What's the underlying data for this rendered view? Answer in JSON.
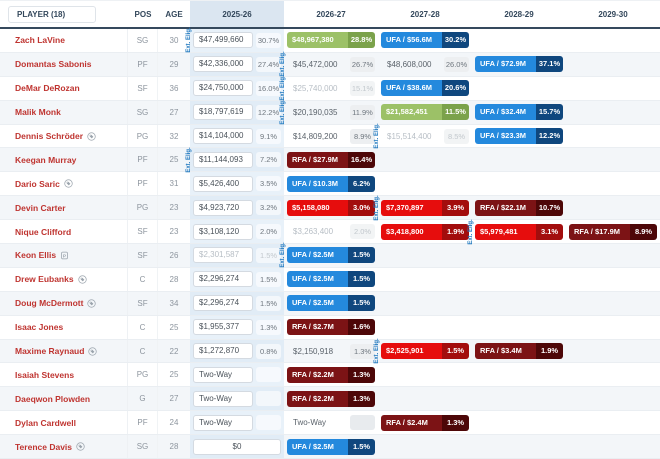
{
  "ext_label": "Ext. Elig.",
  "colors": {
    "player_link": "#bf3430",
    "ext_label": "#1f78bf",
    "header_text": "#33475b",
    "accent_green": "#9cc167",
    "accent_green_dark": "#7ba24b",
    "accent_blue": "#2489dd",
    "accent_blue_dark": "#0f477e",
    "accent_red": "#e60d0d",
    "accent_red_dark": "#a30d0d",
    "accent_maroon": "#7c1315",
    "accent_maroon_dark": "#4d0708",
    "current_col_bg": "#e8eff7"
  },
  "header": {
    "player_label": "PLAYER (18)",
    "pos_label": "POS",
    "age_label": "AGE",
    "years": [
      "2025-26",
      "2026-27",
      "2027-28",
      "2028-29",
      "2029-30"
    ],
    "current_year": "2025-26"
  },
  "rows": [
    {
      "name": "Zach LaVine",
      "icon": null,
      "pos": "SG",
      "age": "30",
      "cells": [
        {
          "style": "box",
          "value": "$47,499,660",
          "pct": "30.7%",
          "ext": true
        },
        {
          "style": "green",
          "value": "$48,967,380",
          "pct": "28.8%"
        },
        {
          "style": "blue",
          "value": "UFA / $56.6M",
          "pct": "30.2%"
        },
        null,
        null
      ]
    },
    {
      "name": "Domantas Sabonis",
      "icon": null,
      "pos": "PF",
      "age": "29",
      "cells": [
        {
          "style": "box",
          "value": "$42,336,000",
          "pct": "27.4%"
        },
        {
          "style": "plain",
          "value": "$45,472,000",
          "pct": "26.7%",
          "ext": true
        },
        {
          "style": "plain",
          "value": "$48,608,000",
          "pct": "26.0%"
        },
        {
          "style": "blue",
          "value": "UFA / $72.9M",
          "pct": "37.1%"
        },
        null
      ]
    },
    {
      "name": "DeMar DeRozan",
      "icon": null,
      "pos": "SF",
      "age": "36",
      "cells": [
        {
          "style": "box",
          "value": "$24,750,000",
          "pct": "16.0%"
        },
        {
          "style": "plain-gray",
          "value": "$25,740,000",
          "pct": "15.1%",
          "ext": true
        },
        {
          "style": "blue",
          "value": "UFA / $38.6M",
          "pct": "20.6%"
        },
        null,
        null
      ]
    },
    {
      "name": "Malik Monk",
      "icon": null,
      "pos": "SG",
      "age": "27",
      "cells": [
        {
          "style": "box",
          "value": "$18,797,619",
          "pct": "12.2%"
        },
        {
          "style": "plain",
          "value": "$20,190,035",
          "pct": "11.9%",
          "ext": true
        },
        {
          "style": "green",
          "value": "$21,582,451",
          "pct": "11.5%"
        },
        {
          "style": "blue",
          "value": "UFA / $32.4M",
          "pct": "15.7%"
        },
        null
      ]
    },
    {
      "name": "Dennis Schröder",
      "icon": "tag-icon",
      "pos": "PG",
      "age": "32",
      "cells": [
        {
          "style": "box",
          "value": "$14,104,000",
          "pct": "9.1%"
        },
        {
          "style": "plain",
          "value": "$14,809,200",
          "pct": "8.9%"
        },
        {
          "style": "plain-gray",
          "value": "$15,514,400",
          "pct": "8.5%",
          "ext": true
        },
        {
          "style": "blue",
          "value": "UFA / $23.3M",
          "pct": "12.2%"
        },
        null
      ]
    },
    {
      "name": "Keegan Murray",
      "icon": null,
      "pos": "PF",
      "age": "25",
      "cells": [
        {
          "style": "box",
          "value": "$11,144,093",
          "pct": "7.2%",
          "ext": true
        },
        {
          "style": "maroon",
          "value": "RFA / $27.9M",
          "pct": "16.4%"
        },
        null,
        null,
        null
      ]
    },
    {
      "name": "Dario Saric",
      "icon": "tag-icon",
      "pos": "PF",
      "age": "31",
      "cells": [
        {
          "style": "box",
          "value": "$5,426,400",
          "pct": "3.5%"
        },
        {
          "style": "blue",
          "value": "UFA / $10.3M",
          "pct": "6.2%"
        },
        null,
        null,
        null
      ]
    },
    {
      "name": "Devin Carter",
      "icon": null,
      "pos": "PG",
      "age": "23",
      "cells": [
        {
          "style": "box",
          "value": "$4,923,720",
          "pct": "3.2%"
        },
        {
          "style": "red",
          "value": "$5,158,080",
          "pct": "3.0%"
        },
        {
          "style": "red",
          "value": "$7,370,897",
          "pct": "3.9%",
          "ext": true
        },
        {
          "style": "maroon",
          "value": "RFA / $22.1M",
          "pct": "10.7%"
        },
        null
      ]
    },
    {
      "name": "Nique Clifford",
      "icon": null,
      "pos": "SF",
      "age": "23",
      "cells": [
        {
          "style": "box",
          "value": "$3,108,120",
          "pct": "2.0%"
        },
        {
          "style": "plain-gray",
          "value": "$3,263,400",
          "pct": "2.0%"
        },
        {
          "style": "red",
          "value": "$3,418,800",
          "pct": "1.9%"
        },
        {
          "style": "red",
          "value": "$5,979,481",
          "pct": "3.1%",
          "ext": true
        },
        {
          "style": "maroon",
          "value": "RFA / $17.9M",
          "pct": "8.9%"
        }
      ]
    },
    {
      "name": "Keon Ellis",
      "icon": "player-option-icon",
      "pos": "SF",
      "age": "26",
      "cells": [
        {
          "style": "box-gray",
          "value": "$2,301,587",
          "pct": "1.5%"
        },
        {
          "style": "blue",
          "value": "UFA / $2.5M",
          "pct": "1.5%",
          "ext": true
        },
        null,
        null,
        null
      ]
    },
    {
      "name": "Drew Eubanks",
      "icon": "tag-icon",
      "pos": "C",
      "age": "28",
      "cells": [
        {
          "style": "box",
          "value": "$2,296,274",
          "pct": "1.5%"
        },
        {
          "style": "blue",
          "value": "UFA / $2.5M",
          "pct": "1.5%"
        },
        null,
        null,
        null
      ]
    },
    {
      "name": "Doug McDermott",
      "icon": "tag-icon",
      "pos": "SF",
      "age": "34",
      "cells": [
        {
          "style": "box",
          "value": "$2,296,274",
          "pct": "1.5%"
        },
        {
          "style": "blue",
          "value": "UFA / $2.5M",
          "pct": "1.5%"
        },
        null,
        null,
        null
      ]
    },
    {
      "name": "Isaac Jones",
      "icon": null,
      "pos": "C",
      "age": "25",
      "cells": [
        {
          "style": "box",
          "value": "$1,955,377",
          "pct": "1.3%"
        },
        {
          "style": "maroon",
          "value": "RFA / $2.7M",
          "pct": "1.6%"
        },
        null,
        null,
        null
      ]
    },
    {
      "name": "Maxime Raynaud",
      "icon": "tag-icon",
      "pos": "C",
      "age": "22",
      "cells": [
        {
          "style": "box",
          "value": "$1,272,870",
          "pct": "0.8%"
        },
        {
          "style": "plain",
          "value": "$2,150,918",
          "pct": "1.3%"
        },
        {
          "style": "red",
          "value": "$2,525,901",
          "pct": "1.5%",
          "ext": true
        },
        {
          "style": "maroon",
          "value": "RFA / $3.4M",
          "pct": "1.9%"
        },
        null
      ]
    },
    {
      "name": "Isaiah Stevens",
      "icon": null,
      "pos": "PG",
      "age": "25",
      "cells": [
        {
          "style": "box",
          "value": "Two-Way",
          "pct": ""
        },
        {
          "style": "maroon",
          "value": "RFA / $2.2M",
          "pct": "1.3%"
        },
        null,
        null,
        null
      ]
    },
    {
      "name": "Daeqwon Plowden",
      "icon": null,
      "pos": "G",
      "age": "27",
      "cells": [
        {
          "style": "box",
          "value": "Two-Way",
          "pct": ""
        },
        {
          "style": "maroon",
          "value": "RFA / $2.2M",
          "pct": "1.3%"
        },
        null,
        null,
        null
      ]
    },
    {
      "name": "Dylan Cardwell",
      "icon": null,
      "pos": "PF",
      "age": "24",
      "cells": [
        {
          "style": "box",
          "value": "Two-Way",
          "pct": ""
        },
        {
          "style": "plain",
          "value": "Two-Way",
          "pct": ""
        },
        {
          "style": "maroon",
          "value": "RFA / $2.4M",
          "pct": "1.3%"
        },
        null,
        null
      ]
    },
    {
      "name": "Terence Davis",
      "icon": "tag-icon",
      "pos": "SG",
      "age": "28",
      "cells": [
        {
          "style": "box-wide",
          "value": "$0",
          "pct": null
        },
        {
          "style": "blue",
          "value": "UFA / $2.5M",
          "pct": "1.5%"
        },
        null,
        null,
        null
      ]
    }
  ]
}
